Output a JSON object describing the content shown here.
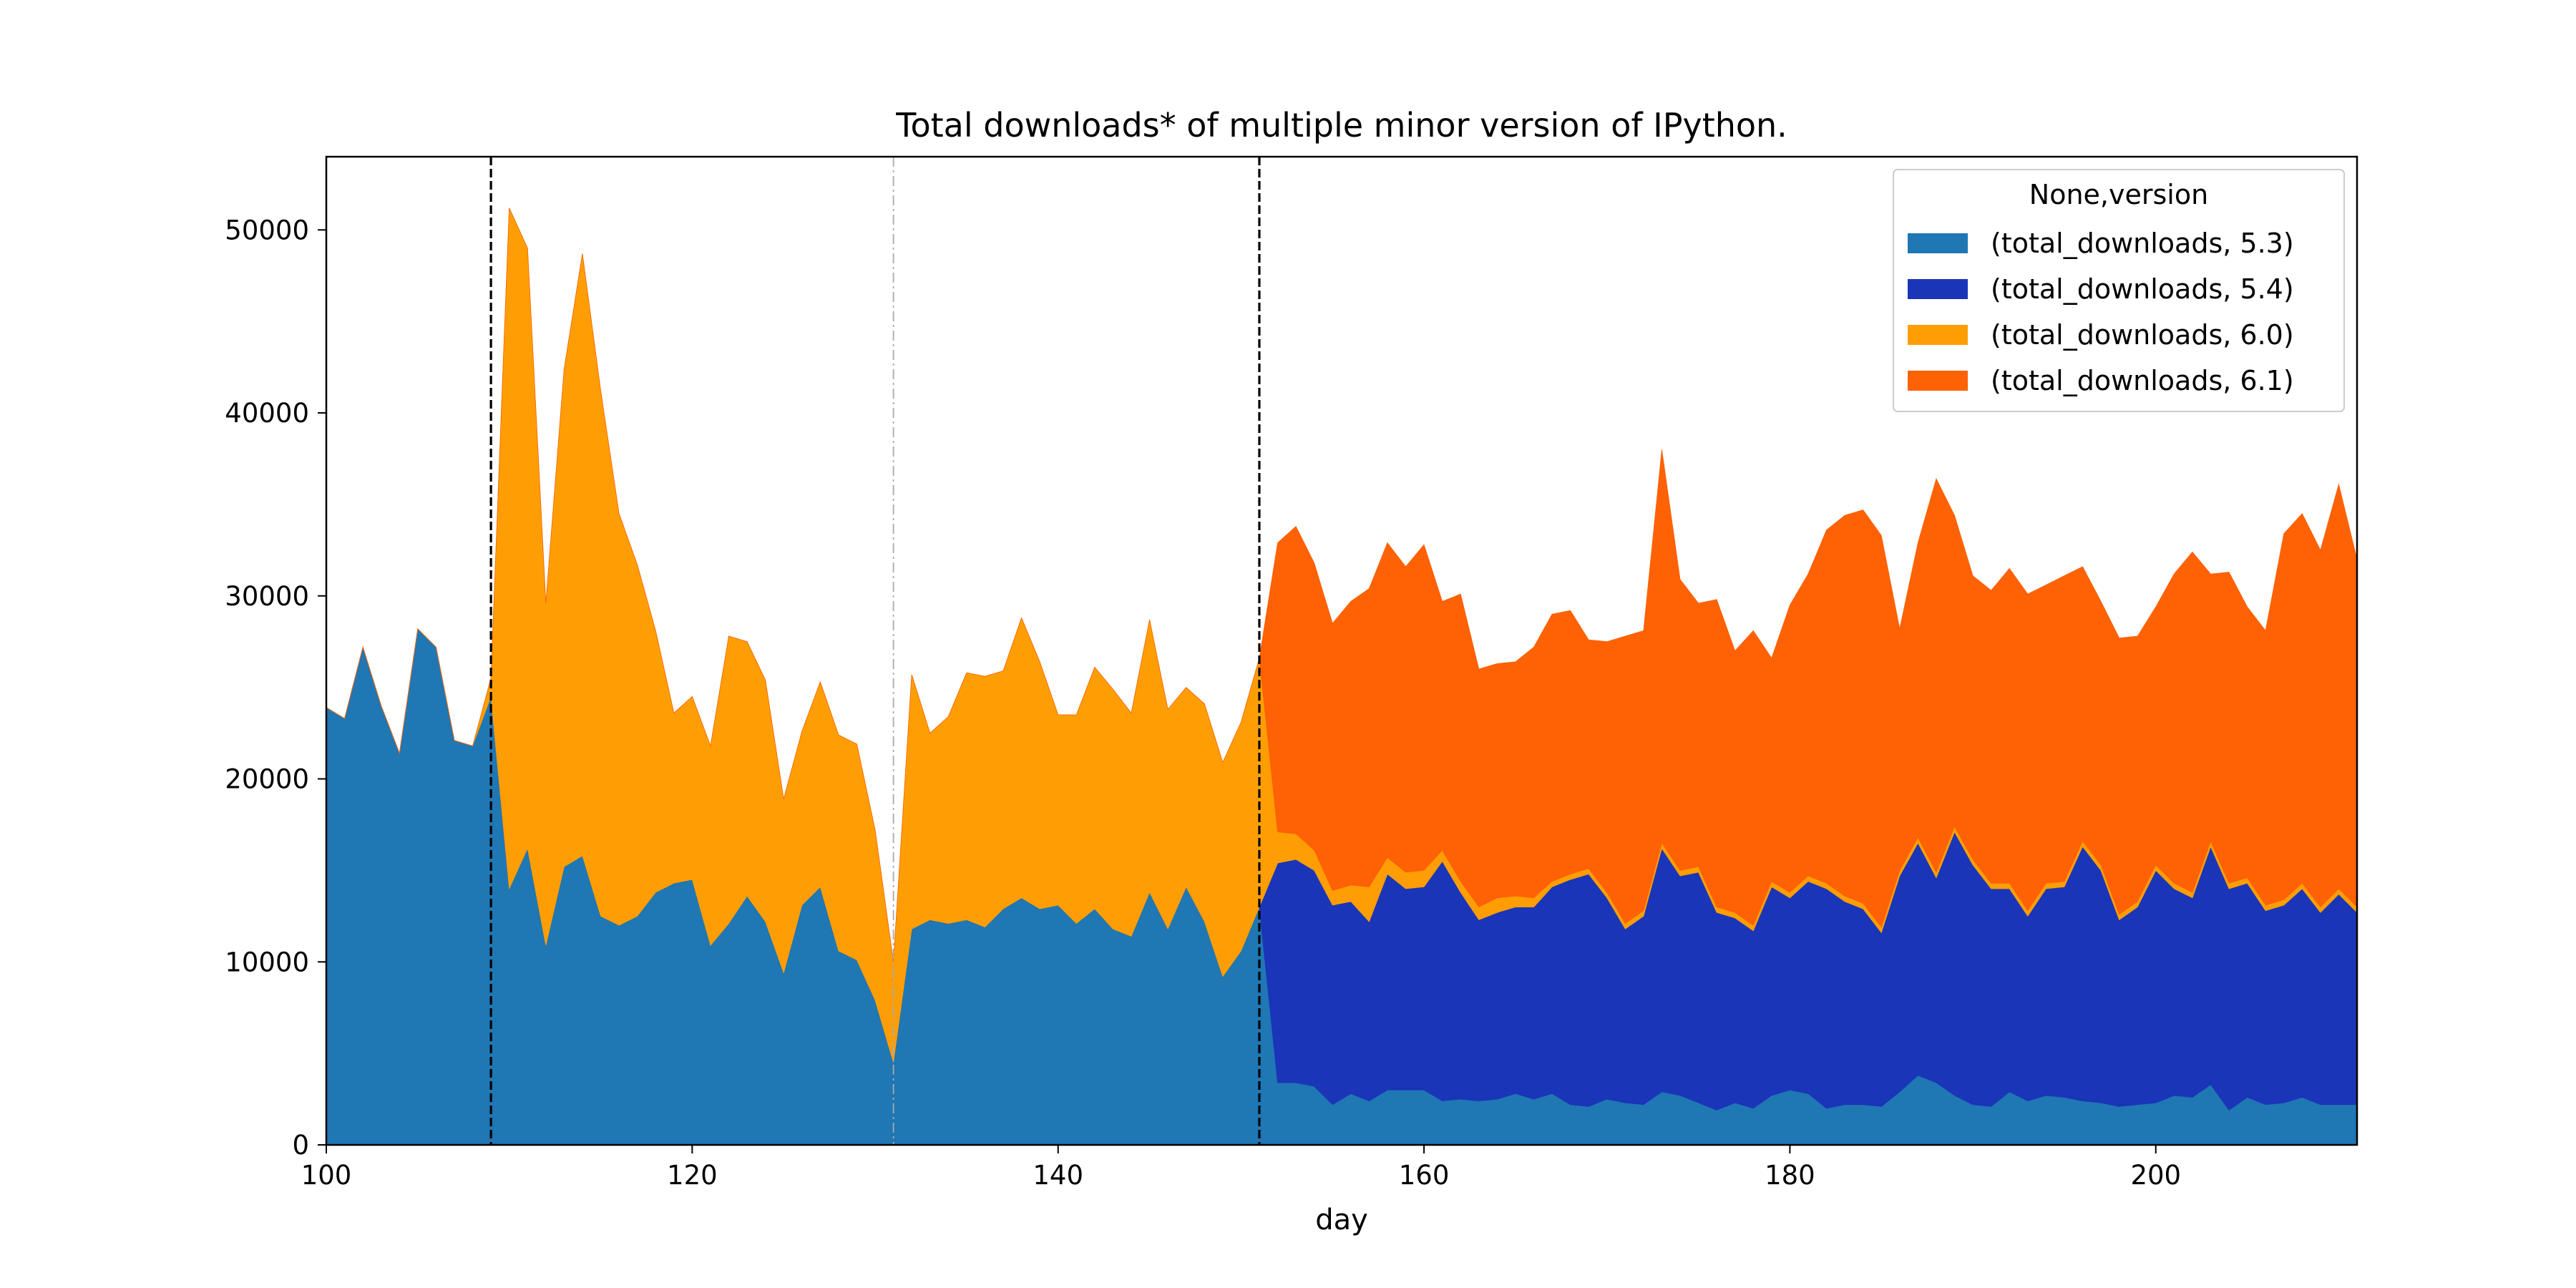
{
  "chart_data": {
    "type": "area",
    "stacked": true,
    "title": "Total downloads* of multiple minor version of IPython.",
    "xlabel": "day",
    "ylabel": "",
    "xlim": [
      100,
      211
    ],
    "ylim": [
      0,
      54000
    ],
    "x_ticks": [
      100,
      120,
      140,
      160,
      180,
      200
    ],
    "y_ticks": [
      0,
      10000,
      20000,
      30000,
      40000,
      50000
    ],
    "grid": false,
    "legend": {
      "title": "None,version",
      "placement": "top-right"
    },
    "vlines": [
      {
        "x": 109,
        "style": "dashed",
        "color": "#000000"
      },
      {
        "x": 131,
        "style": "dashdot",
        "color": "#aaaaaa"
      },
      {
        "x": 151,
        "style": "dashed",
        "color": "#000000"
      }
    ],
    "x_start": 100,
    "series": [
      {
        "name": "(total_downloads, 5.3)",
        "color": "#1f77b4",
        "values": [
          23900,
          23300,
          27200,
          24000,
          21400,
          28200,
          27200,
          22100,
          21800,
          24500,
          14000,
          16200,
          10900,
          15200,
          15800,
          12500,
          12000,
          12500,
          13800,
          14300,
          14500,
          10900,
          12100,
          13600,
          12200,
          9400,
          13100,
          14100,
          10600,
          10100,
          7900,
          4500,
          11800,
          12300,
          12100,
          12300,
          11900,
          12900,
          13500,
          12900,
          13100,
          12100,
          12900,
          11800,
          11400,
          13800,
          11800,
          14100,
          12200,
          9200,
          10600,
          13000,
          3400,
          3400,
          3200,
          2200,
          2800,
          2400,
          3000,
          3000,
          3000,
          2400,
          2500,
          2400,
          2500,
          2800,
          2500,
          2800,
          2200,
          2100,
          2500,
          2300,
          2200,
          2900,
          2700,
          2300,
          1900,
          2300,
          2000,
          2700,
          3000,
          2800,
          2000,
          2200,
          2200,
          2100,
          2900,
          3800,
          3400,
          2700,
          2200,
          2100,
          2900,
          2400,
          2700,
          2600,
          2400,
          2300,
          2100,
          2200,
          2300,
          2700,
          2600,
          3300,
          1900,
          2600,
          2200,
          2300,
          2600,
          2200,
          2200,
          2200
        ]
      },
      {
        "name": "(total_downloads, 5.4)",
        "color": "#1a35b8",
        "values": [
          0,
          0,
          0,
          0,
          0,
          0,
          0,
          0,
          0,
          0,
          0,
          0,
          0,
          0,
          0,
          0,
          0,
          0,
          0,
          0,
          0,
          0,
          0,
          0,
          0,
          0,
          0,
          0,
          0,
          0,
          0,
          0,
          0,
          0,
          0,
          0,
          0,
          0,
          0,
          0,
          0,
          0,
          0,
          0,
          0,
          0,
          0,
          0,
          0,
          0,
          0,
          0,
          12000,
          12200,
          11800,
          10900,
          10500,
          9800,
          11800,
          11000,
          11100,
          13100,
          11300,
          9900,
          10200,
          10200,
          10500,
          11300,
          12300,
          12700,
          11000,
          9500,
          10300,
          13300,
          12000,
          12600,
          10800,
          10100,
          9700,
          11400,
          10500,
          11600,
          12000,
          11100,
          10700,
          9500,
          11800,
          12700,
          11200,
          14400,
          13100,
          11900,
          11100,
          10100,
          11300,
          11500,
          13900,
          12700,
          10200,
          10800,
          12700,
          11300,
          10900,
          13000,
          12100,
          11700,
          10600,
          10800,
          11400,
          10500,
          11500,
          10500
        ]
      },
      {
        "name": "(total_downloads, 6.0)",
        "color": "#ff9e04",
        "values": [
          0,
          0,
          0,
          0,
          0,
          0,
          0,
          0,
          0,
          1000,
          37200,
          32800,
          18700,
          27200,
          32900,
          28700,
          22500,
          19200,
          14300,
          9300,
          10000,
          10900,
          15700,
          13900,
          13200,
          9500,
          9500,
          11200,
          11800,
          11800,
          9300,
          5500,
          13900,
          10200,
          11300,
          13500,
          13700,
          13000,
          15300,
          13500,
          10400,
          11400,
          13200,
          13100,
          12200,
          14900,
          12000,
          10900,
          11900,
          11700,
          12500,
          13600,
          1700,
          1400,
          1100,
          800,
          900,
          1900,
          900,
          900,
          900,
          600,
          600,
          700,
          800,
          600,
          500,
          300,
          300,
          300,
          300,
          300,
          300,
          300,
          300,
          300,
          300,
          300,
          300,
          300,
          300,
          300,
          300,
          300,
          300,
          300,
          300,
          300,
          300,
          300,
          300,
          300,
          300,
          300,
          300,
          300,
          300,
          300,
          300,
          300,
          300,
          300,
          300,
          300,
          300,
          300,
          300,
          300,
          300,
          300,
          300,
          300
        ]
      },
      {
        "name": "(total_downloads, 6.1)",
        "color": "#ff6105",
        "values": [
          0,
          0,
          0,
          0,
          0,
          0,
          0,
          0,
          0,
          0,
          0,
          0,
          0,
          0,
          0,
          0,
          0,
          0,
          0,
          0,
          0,
          0,
          0,
          0,
          0,
          0,
          0,
          0,
          0,
          0,
          0,
          0,
          0,
          0,
          0,
          0,
          0,
          0,
          0,
          0,
          0,
          0,
          0,
          0,
          0,
          0,
          0,
          0,
          0,
          0,
          0,
          0,
          15800,
          16800,
          15700,
          14600,
          15500,
          16300,
          17200,
          16700,
          17800,
          13600,
          15700,
          13000,
          12800,
          12800,
          13700,
          14600,
          14400,
          12500,
          13700,
          15700,
          15300,
          21500,
          15900,
          14400,
          16800,
          14300,
          16100,
          12200,
          15700,
          16500,
          19300,
          20800,
          21500,
          21400,
          13200,
          16100,
          21500,
          17000,
          15500,
          16000,
          17200,
          17300,
          16300,
          16700,
          15000,
          14400,
          15100,
          14500,
          14100,
          16900,
          18600,
          14600,
          17000,
          14800,
          15000,
          20000,
          20200,
          19500,
          22100,
          19000
        ]
      }
    ]
  }
}
